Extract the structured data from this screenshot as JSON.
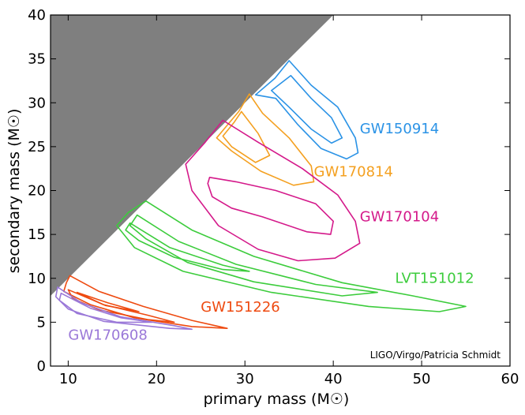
{
  "chart_data": {
    "type": "contour",
    "title": "",
    "xlabel": "primary mass (M☉)",
    "ylabel": "secondary mass (M☉)",
    "xlim": [
      8,
      60
    ],
    "ylim": [
      0,
      40
    ],
    "x_ticks": [
      10,
      20,
      30,
      40,
      50,
      60
    ],
    "y_ticks": [
      0,
      5,
      10,
      15,
      20,
      25,
      30,
      35,
      40
    ],
    "grid": false,
    "excluded_region": {
      "description": "m2 > m1",
      "color": "#7f7f7f"
    },
    "credit": "LIGO/Virgo/Patricia Schmidt",
    "events": [
      {
        "name": "GW150914",
        "color": "#2b93e6",
        "label_at": [
          43,
          26.5
        ],
        "contours": [
          [
            [
              35.0,
              34.8
            ],
            [
              37.5,
              32.0
            ],
            [
              40.5,
              29.5
            ],
            [
              42.5,
              26.0
            ],
            [
              42.8,
              24.3
            ],
            [
              41.5,
              23.6
            ],
            [
              38.6,
              24.8
            ],
            [
              36.0,
              27.5
            ],
            [
              33.5,
              30.5
            ],
            [
              31.2,
              30.9
            ],
            [
              33.4,
              32.8
            ],
            [
              35.0,
              34.8
            ]
          ],
          [
            [
              35.2,
              33.1
            ],
            [
              37.5,
              30.5
            ],
            [
              39.8,
              28.3
            ],
            [
              41.0,
              26.0
            ],
            [
              39.8,
              25.4
            ],
            [
              37.5,
              27.0
            ],
            [
              35.0,
              29.5
            ],
            [
              33.0,
              31.4
            ],
            [
              35.2,
              33.1
            ]
          ]
        ]
      },
      {
        "name": "GW170814",
        "color": "#f4a020",
        "label_at": [
          37.8,
          21.6
        ],
        "contours": [
          [
            [
              30.5,
              31.0
            ],
            [
              32.0,
              28.8
            ],
            [
              35.0,
              26.0
            ],
            [
              37.5,
              22.8
            ],
            [
              37.8,
              21.0
            ],
            [
              35.5,
              20.6
            ],
            [
              31.8,
              22.2
            ],
            [
              28.5,
              24.5
            ],
            [
              26.8,
              26.0
            ],
            [
              27.8,
              27.2
            ],
            [
              29.3,
              29.0
            ],
            [
              30.5,
              31.0
            ]
          ],
          [
            [
              29.6,
              29.0
            ],
            [
              31.5,
              26.5
            ],
            [
              32.8,
              24.0
            ],
            [
              31.2,
              23.2
            ],
            [
              28.5,
              25.0
            ],
            [
              27.5,
              26.2
            ],
            [
              28.8,
              27.8
            ],
            [
              29.6,
              29.0
            ]
          ]
        ]
      },
      {
        "name": "GW170104",
        "color": "#d4198a",
        "label_at": [
          43,
          16.5
        ],
        "contours": [
          [
            [
              27.5,
              28.0
            ],
            [
              31.5,
              25.5
            ],
            [
              36.5,
              22.5
            ],
            [
              40.5,
              19.5
            ],
            [
              42.5,
              16.5
            ],
            [
              43.0,
              14.0
            ],
            [
              40.2,
              12.3
            ],
            [
              36.0,
              12.0
            ],
            [
              31.5,
              13.3
            ],
            [
              27.0,
              16.0
            ],
            [
              24.0,
              20.0
            ],
            [
              23.3,
              23.0
            ],
            [
              25.5,
              25.5
            ],
            [
              27.5,
              28.0
            ]
          ],
          [
            [
              26.0,
              21.5
            ],
            [
              29.0,
              21.0
            ],
            [
              33.5,
              20.0
            ],
            [
              38.0,
              18.5
            ],
            [
              40.0,
              16.5
            ],
            [
              39.7,
              15.0
            ],
            [
              37.0,
              15.3
            ],
            [
              32.0,
              17.0
            ],
            [
              28.5,
              18.0
            ],
            [
              26.3,
              19.3
            ],
            [
              25.8,
              20.8
            ],
            [
              26.0,
              21.5
            ]
          ]
        ]
      },
      {
        "name": "LVT151012",
        "color": "#3ccc3c",
        "label_at": [
          47,
          9.5
        ],
        "contours": [
          [
            [
              18.8,
              18.8
            ],
            [
              24.0,
              15.5
            ],
            [
              31.0,
              12.5
            ],
            [
              41.0,
              9.5
            ],
            [
              49.0,
              8.0
            ],
            [
              55.0,
              6.8
            ],
            [
              52.0,
              6.2
            ],
            [
              44.0,
              6.8
            ],
            [
              33.0,
              8.4
            ],
            [
              23.0,
              10.8
            ],
            [
              17.5,
              13.5
            ],
            [
              15.5,
              16.0
            ],
            [
              16.8,
              17.5
            ],
            [
              18.8,
              18.8
            ]
          ],
          [
            [
              17.8,
              17.2
            ],
            [
              22.5,
              14.2
            ],
            [
              29.0,
              11.6
            ],
            [
              38.0,
              9.3
            ],
            [
              45.0,
              8.4
            ],
            [
              41.0,
              8.0
            ],
            [
              31.0,
              9.6
            ],
            [
              23.5,
              11.8
            ],
            [
              18.8,
              14.5
            ],
            [
              17.0,
              16.0
            ],
            [
              17.8,
              17.2
            ]
          ],
          [
            [
              17.0,
              16.3
            ],
            [
              21.5,
              13.5
            ],
            [
              27.5,
              11.5
            ],
            [
              30.5,
              10.8
            ],
            [
              27.5,
              11.0
            ],
            [
              22.0,
              12.4
            ],
            [
              18.0,
              14.3
            ],
            [
              16.5,
              15.5
            ],
            [
              17.0,
              16.3
            ]
          ]
        ]
      },
      {
        "name": "GW151226",
        "color": "#ee4a10",
        "label_at": [
          25,
          6.2
        ],
        "contours": [
          [
            [
              10.2,
              10.3
            ],
            [
              13.5,
              8.5
            ],
            [
              18.5,
              6.8
            ],
            [
              24.0,
              5.2
            ],
            [
              28.0,
              4.3
            ],
            [
              24.0,
              4.5
            ],
            [
              17.5,
              5.5
            ],
            [
              12.5,
              7.0
            ],
            [
              9.5,
              8.5
            ],
            [
              9.8,
              9.5
            ],
            [
              10.2,
              10.3
            ]
          ],
          [
            [
              10.0,
              8.7
            ],
            [
              14.0,
              7.0
            ],
            [
              19.0,
              5.8
            ],
            [
              22.0,
              5.0
            ],
            [
              19.0,
              5.3
            ],
            [
              13.5,
              6.4
            ],
            [
              10.5,
              7.7
            ],
            [
              10.0,
              8.7
            ]
          ],
          [
            [
              11.0,
              8.4
            ],
            [
              14.5,
              7.2
            ],
            [
              18.0,
              6.2
            ],
            [
              14.2,
              6.9
            ],
            [
              11.0,
              8.4
            ]
          ]
        ]
      },
      {
        "name": "GW170608",
        "color": "#9a78d8",
        "label_at": [
          10,
          3.0
        ],
        "contours": [
          [
            [
              8.8,
              9.0
            ],
            [
              11.5,
              7.2
            ],
            [
              16.0,
              5.6
            ],
            [
              22.0,
              4.6
            ],
            [
              24.0,
              4.2
            ],
            [
              21.5,
              4.3
            ],
            [
              14.0,
              5.1
            ],
            [
              10.0,
              6.5
            ],
            [
              8.6,
              7.9
            ],
            [
              8.8,
              9.0
            ]
          ],
          [
            [
              9.2,
              8.3
            ],
            [
              12.5,
              6.6
            ],
            [
              16.0,
              5.5
            ],
            [
              19.5,
              5.0
            ],
            [
              15.5,
              5.0
            ],
            [
              11.0,
              6.0
            ],
            [
              9.0,
              7.5
            ],
            [
              9.2,
              8.3
            ]
          ]
        ]
      }
    ]
  }
}
